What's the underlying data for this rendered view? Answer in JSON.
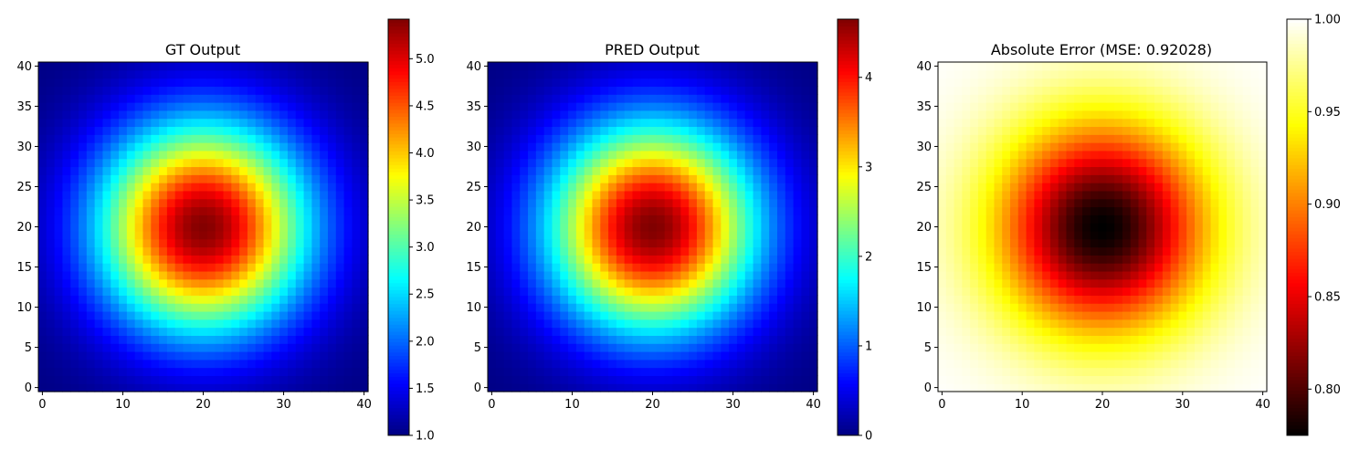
{
  "chart_data": [
    {
      "type": "heatmap",
      "title": "GT Output",
      "colormap": "jet",
      "grid_size": 41,
      "center": [
        20,
        20
      ],
      "peak_value": 5.4,
      "base_value": 1.0,
      "x_ticks": [
        "0",
        "10",
        "20",
        "30",
        "40"
      ],
      "y_ticks": [
        "0",
        "5",
        "10",
        "15",
        "20",
        "25",
        "30",
        "35",
        "40"
      ],
      "xlim": [
        -0.5,
        40.5
      ],
      "ylim": [
        -0.5,
        40.5
      ],
      "colorbar": {
        "range": [
          1.0,
          5.42
        ],
        "ticks": [
          "1.0",
          "1.5",
          "2.0",
          "2.5",
          "3.0",
          "3.5",
          "4.0",
          "4.5",
          "5.0"
        ]
      }
    },
    {
      "type": "heatmap",
      "title": "PRED Output",
      "colormap": "jet",
      "grid_size": 41,
      "center": [
        20,
        20
      ],
      "peak_value": 4.65,
      "base_value": 0.0,
      "x_ticks": [
        "0",
        "10",
        "20",
        "30",
        "40"
      ],
      "y_ticks": [
        "0",
        "5",
        "10",
        "15",
        "20",
        "25",
        "30",
        "35",
        "40"
      ],
      "xlim": [
        -0.5,
        40.5
      ],
      "ylim": [
        -0.5,
        40.5
      ],
      "colorbar": {
        "range": [
          0,
          4.65
        ],
        "ticks": [
          "0",
          "1",
          "2",
          "3",
          "4"
        ]
      }
    },
    {
      "type": "heatmap",
      "title": "Absolute Error (MSE: 0.92028)",
      "colormap": "hot",
      "grid_size": 41,
      "center": [
        20,
        20
      ],
      "peak_value": 0.775,
      "base_value": 1.0,
      "x_ticks": [
        "0",
        "10",
        "20",
        "30",
        "40"
      ],
      "y_ticks": [
        "0",
        "5",
        "10",
        "15",
        "20",
        "25",
        "30",
        "35",
        "40"
      ],
      "xlim": [
        -0.5,
        40.5
      ],
      "ylim": [
        -0.5,
        40.5
      ],
      "colorbar": {
        "range": [
          0.775,
          1.0
        ],
        "ticks": [
          "0.80",
          "0.85",
          "0.90",
          "0.95",
          "1.00"
        ]
      }
    }
  ]
}
